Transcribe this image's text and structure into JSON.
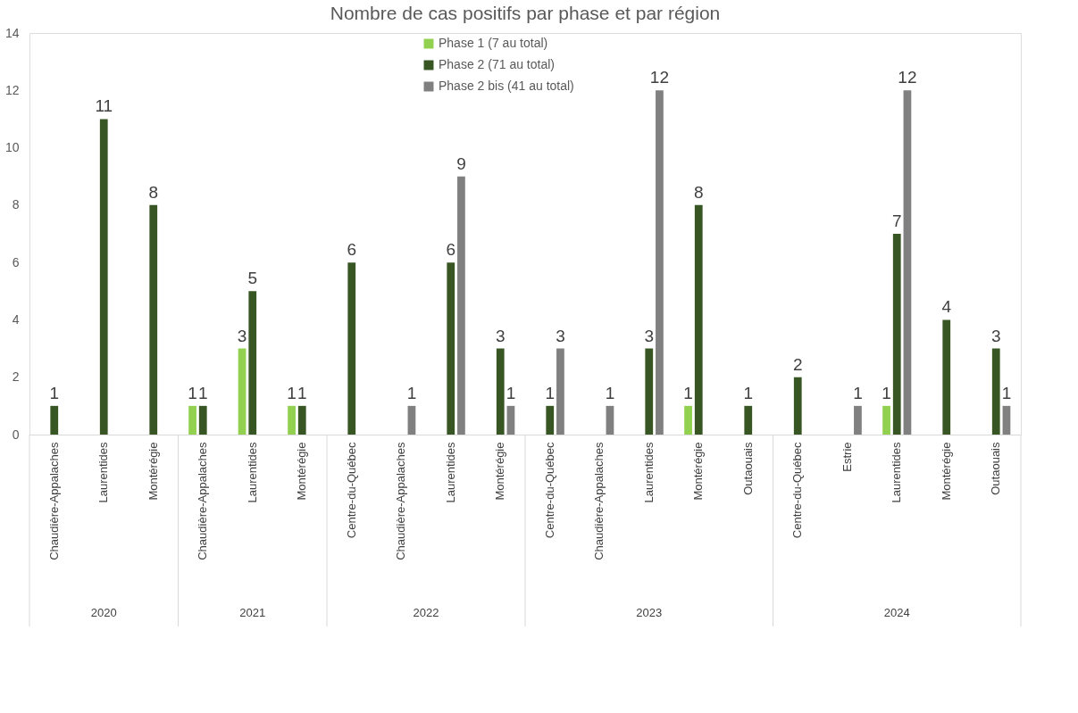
{
  "chart_data": {
    "type": "bar",
    "title": "Nombre de cas positifs par phase et par région",
    "categories": [
      "Chaudière-Appalaches",
      "Laurentides",
      "Montérégie",
      "Chaudière-Appalaches",
      "Laurentides",
      "Montérégie",
      "Centre-du-Québec",
      "Chaudière-Appalaches",
      "Laurentides",
      "Montérégie",
      "Centre-du-Québec",
      "Chaudière-Appalaches",
      "Laurentides",
      "Montérégie",
      "Outaouais",
      "Centre-du-Québec",
      "Estrie",
      "Laurentides",
      "Montérégie",
      "Outaouais"
    ],
    "series": [
      {
        "name": "Phase 1 (7 au total)",
        "color": "#92d050",
        "values": [
          null,
          null,
          null,
          1,
          3,
          1,
          null,
          null,
          null,
          null,
          null,
          null,
          null,
          1,
          null,
          null,
          null,
          1,
          null,
          null
        ]
      },
      {
        "name": "Phase 2 (71 au total)",
        "color": "#375623",
        "values": [
          1,
          11,
          8,
          1,
          5,
          1,
          6,
          null,
          6,
          3,
          1,
          null,
          3,
          8,
          1,
          2,
          null,
          7,
          4,
          3
        ]
      },
      {
        "name": "Phase 2 bis (41 au total)",
        "color": "#808080",
        "values": [
          null,
          null,
          null,
          null,
          null,
          null,
          null,
          1,
          9,
          1,
          3,
          1,
          12,
          null,
          null,
          null,
          1,
          12,
          null,
          1
        ]
      }
    ],
    "annotations": [
      "2020",
      "2021",
      "2022",
      "2023",
      "2024"
    ],
    "ylim": [
      0,
      14
    ],
    "yticks": [
      0,
      2,
      4,
      6,
      8,
      10,
      12,
      14
    ],
    "data_labels": true,
    "grid": false,
    "legend": "top"
  }
}
